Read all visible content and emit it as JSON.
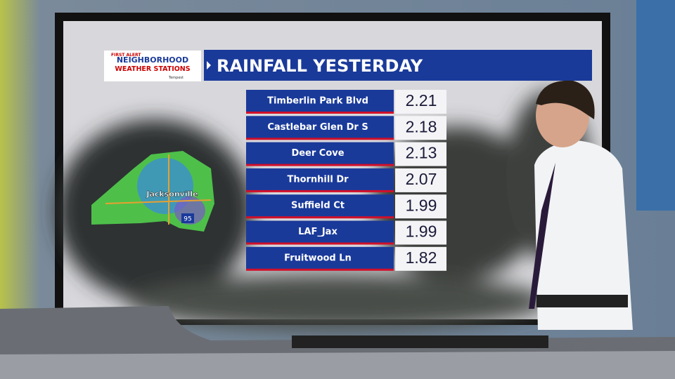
{
  "logo": {
    "line1": "FIRST ALERT",
    "line2": "NEIGHBORHOOD",
    "line3": "WEATHER STATIONS",
    "line4": "Tempest"
  },
  "title": "RAINFALL YESTERDAY",
  "map": {
    "city": "Jacksonville",
    "highway": "95"
  },
  "table": {
    "rows": [
      [
        "Timberlin Park Blvd",
        2.21
      ],
      [
        "Castlebar Glen Dr S",
        2.18
      ],
      [
        "Deer Cove",
        2.13
      ],
      [
        "Thornhill Dr",
        2.07
      ],
      [
        "Suffield Ct",
        1.99
      ],
      [
        "LAF_Jax",
        1.99
      ],
      [
        "Fruitwood Ln",
        1.82
      ]
    ]
  }
}
